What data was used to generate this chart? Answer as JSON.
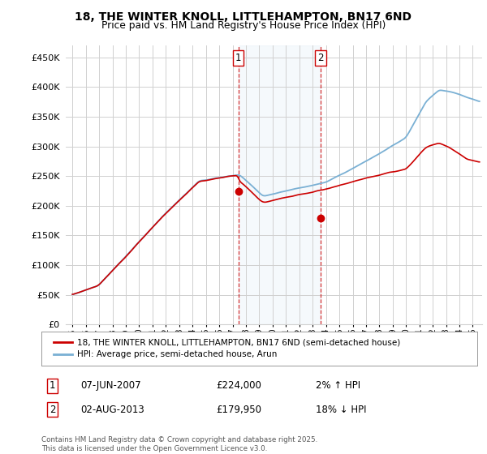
{
  "title_line1": "18, THE WINTER KNOLL, LITTLEHAMPTON, BN17 6ND",
  "title_line2": "Price paid vs. HM Land Registry's House Price Index (HPI)",
  "background_color": "#ffffff",
  "plot_bg_color": "#ffffff",
  "grid_color": "#d0d0d0",
  "hpi_color": "#7ab0d4",
  "price_color": "#cc0000",
  "vline_color": "#cc0000",
  "shade_color": "#c8dff0",
  "sale1_date_x": 2007.44,
  "sale1_price": 224000,
  "sale2_date_x": 2013.59,
  "sale2_price": 179950,
  "ylim_min": 0,
  "ylim_max": 470000,
  "xlim_min": 1994.5,
  "xlim_max": 2025.7,
  "yticks": [
    0,
    50000,
    100000,
    150000,
    200000,
    250000,
    300000,
    350000,
    400000,
    450000
  ],
  "xticks": [
    1995,
    1996,
    1997,
    1998,
    1999,
    2000,
    2001,
    2002,
    2003,
    2004,
    2005,
    2006,
    2007,
    2008,
    2009,
    2010,
    2011,
    2012,
    2013,
    2014,
    2015,
    2016,
    2017,
    2018,
    2019,
    2020,
    2021,
    2022,
    2023,
    2024,
    2025
  ],
  "legend_label_price": "18, THE WINTER KNOLL, LITTLEHAMPTON, BN17 6ND (semi-detached house)",
  "legend_label_hpi": "HPI: Average price, semi-detached house, Arun",
  "annotation1_label": "1",
  "annotation1_date": "07-JUN-2007",
  "annotation1_price": "£224,000",
  "annotation1_hpi": "2% ↑ HPI",
  "annotation2_label": "2",
  "annotation2_date": "02-AUG-2013",
  "annotation2_price": "£179,950",
  "annotation2_hpi": "18% ↓ HPI",
  "footer": "Contains HM Land Registry data © Crown copyright and database right 2025.\nThis data is licensed under the Open Government Licence v3.0."
}
